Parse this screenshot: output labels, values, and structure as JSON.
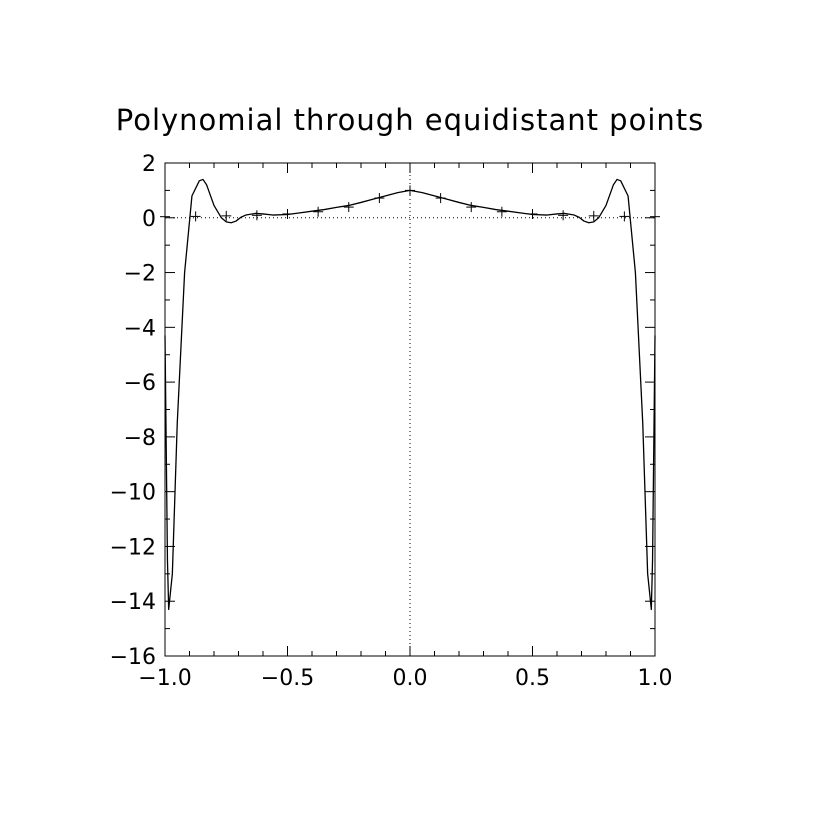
{
  "chart_data": {
    "type": "line",
    "title": "Polynomial through equidistant points",
    "xlabel": "",
    "ylabel": "",
    "xlim": [
      -1.0,
      1.0
    ],
    "ylim": [
      -16,
      2
    ],
    "x_ticks": [
      "−1.0",
      "−0.5",
      "0.0",
      "0.5",
      "1.0"
    ],
    "x_tick_values": [
      -1.0,
      -0.5,
      0.0,
      0.5,
      1.0
    ],
    "y_ticks": [
      "2",
      "0",
      "−2",
      "−4",
      "−6",
      "−8",
      "−10",
      "−12",
      "−14",
      "−16"
    ],
    "y_tick_values": [
      2,
      0,
      -2,
      -4,
      -6,
      -8,
      -10,
      -12,
      -14,
      -16
    ],
    "grid": false,
    "reference_lines": {
      "y": 0,
      "x": 0,
      "style": "dotted"
    },
    "series": [
      {
        "style": "line",
        "x": [
          -1.0,
          -0.99,
          -0.985,
          -0.97,
          -0.95,
          -0.92,
          -0.89,
          -0.86,
          -0.845,
          -0.83,
          -0.8,
          -0.77,
          -0.75,
          -0.73,
          -0.71,
          -0.69,
          -0.67,
          -0.63,
          -0.6,
          -0.56,
          -0.5,
          -0.45,
          -0.4,
          -0.35,
          -0.3,
          -0.25,
          -0.2,
          -0.15,
          -0.1,
          -0.05,
          0.0,
          0.05,
          0.1,
          0.15,
          0.2,
          0.25,
          0.3,
          0.35,
          0.4,
          0.45,
          0.5,
          0.56,
          0.6,
          0.63,
          0.67,
          0.69,
          0.71,
          0.73,
          0.75,
          0.77,
          0.8,
          0.83,
          0.845,
          0.86,
          0.89,
          0.92,
          0.95,
          0.97,
          0.985,
          0.99,
          1.0
        ],
        "y": [
          -4.3,
          -12.5,
          -14.3,
          -13.0,
          -7.5,
          -2.0,
          0.8,
          1.35,
          1.4,
          1.2,
          0.45,
          0.0,
          -0.15,
          -0.18,
          -0.12,
          0.02,
          0.1,
          0.16,
          0.14,
          0.1,
          0.12,
          0.18,
          0.24,
          0.3,
          0.38,
          0.45,
          0.56,
          0.68,
          0.8,
          0.92,
          1.0,
          0.92,
          0.8,
          0.68,
          0.56,
          0.45,
          0.38,
          0.3,
          0.24,
          0.18,
          0.12,
          0.1,
          0.14,
          0.16,
          0.1,
          0.02,
          -0.12,
          -0.18,
          -0.15,
          0.0,
          0.45,
          1.2,
          1.4,
          1.35,
          0.8,
          -2.0,
          -7.5,
          -13.0,
          -14.3,
          -12.5,
          -4.3
        ]
      },
      {
        "style": "markers",
        "marker": "plus",
        "x": [
          -1.0,
          -0.875,
          -0.75,
          -0.625,
          -0.5,
          -0.375,
          -0.25,
          -0.125,
          0.0,
          0.125,
          0.25,
          0.375,
          0.5,
          0.625,
          0.75,
          0.875,
          1.0
        ],
        "y": [
          0.04,
          0.05,
          0.07,
          0.09,
          0.14,
          0.22,
          0.39,
          0.72,
          1.0,
          0.72,
          0.39,
          0.22,
          0.14,
          0.09,
          0.07,
          0.05,
          0.04
        ]
      }
    ]
  }
}
